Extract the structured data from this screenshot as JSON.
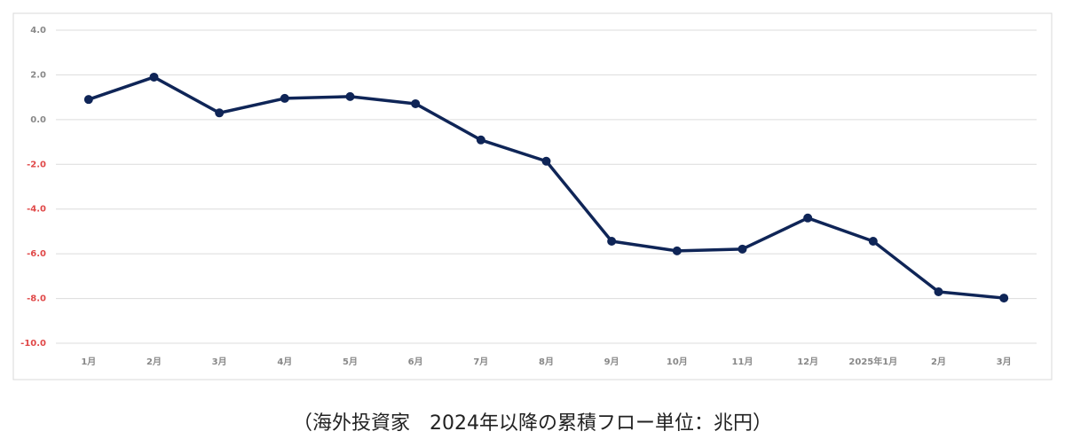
{
  "chart_data": {
    "type": "line",
    "caption": "（海外投資家　2024年以降の累積フロー単位：兆円）",
    "categories": [
      "1月",
      "2月",
      "3月",
      "4月",
      "5月",
      "6月",
      "7月",
      "8月",
      "9月",
      "10月",
      "11月",
      "12月",
      "2025年1月",
      "2月",
      "3月"
    ],
    "series": [
      {
        "color": "#0f2557",
        "values": [
          0.9,
          1.9,
          0.3,
          0.95,
          1.03,
          0.71,
          -0.91,
          -1.86,
          -5.44,
          -5.87,
          -5.79,
          -4.4,
          -5.44,
          -7.7,
          -7.98
        ]
      }
    ],
    "ylim": [
      -10,
      4
    ],
    "yticks": [
      {
        "value": -10,
        "label": "-10.0"
      },
      {
        "value": -8,
        "label": "-8.0"
      },
      {
        "value": -6,
        "label": "-6.0"
      },
      {
        "value": -4,
        "label": "-4.0"
      },
      {
        "value": -2,
        "label": "-2.0"
      },
      {
        "value": 0,
        "label": "0.0"
      },
      {
        "value": 2,
        "label": "2.0"
      },
      {
        "value": 4,
        "label": "4.0"
      }
    ],
    "grid": true,
    "tick_color": "#888888",
    "negative_tick_color": "#e04848"
  }
}
